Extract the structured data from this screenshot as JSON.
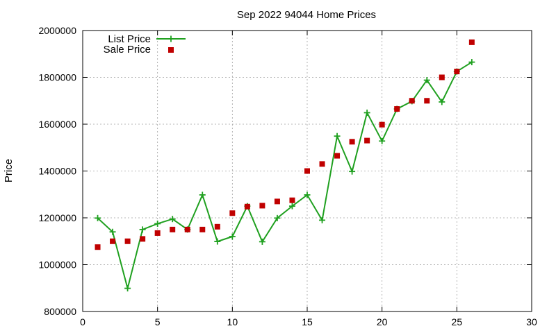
{
  "chart_data": {
    "type": "line",
    "title": "Sep 2022 94044 Home Prices",
    "xlabel": "",
    "ylabel": "Price",
    "xlim": [
      0,
      30
    ],
    "ylim": [
      800000,
      2000000
    ],
    "xticks": [
      0,
      5,
      10,
      15,
      20,
      25,
      30
    ],
    "yticks": [
      800000,
      1000000,
      1200000,
      1400000,
      1600000,
      1800000,
      2000000
    ],
    "grid": true,
    "legend_position": "top-left",
    "series": [
      {
        "name": "List Price",
        "kind": "line",
        "marker": "plus",
        "color": "#1fa01f",
        "x": [
          1,
          2,
          3,
          4,
          5,
          6,
          7,
          8,
          9,
          10,
          11,
          12,
          13,
          14,
          15,
          16,
          17,
          18,
          19,
          20,
          21,
          22,
          23,
          24,
          25,
          26
        ],
        "y": [
          1199000,
          1140000,
          899000,
          1150000,
          1175000,
          1195000,
          1150000,
          1298000,
          1099000,
          1120000,
          1250000,
          1098000,
          1199000,
          1250000,
          1298000,
          1190000,
          1549000,
          1398000,
          1649000,
          1528000,
          1665000,
          1698000,
          1788000,
          1695000,
          1825000,
          1865000
        ]
      },
      {
        "name": "Sale Price",
        "kind": "scatter",
        "marker": "square",
        "color": "#c00000",
        "x": [
          1,
          2,
          3,
          4,
          5,
          6,
          7,
          8,
          9,
          10,
          11,
          12,
          13,
          14,
          15,
          16,
          17,
          18,
          19,
          20,
          21,
          22,
          23,
          24,
          25,
          26
        ],
        "y": [
          1075000,
          1100000,
          1100000,
          1110000,
          1135000,
          1150000,
          1150000,
          1150000,
          1162000,
          1220000,
          1248000,
          1252000,
          1270000,
          1275000,
          1400000,
          1430000,
          1465000,
          1525000,
          1530000,
          1598000,
          1665000,
          1700000,
          1700000,
          1800000,
          1825000,
          1950000
        ]
      }
    ]
  }
}
